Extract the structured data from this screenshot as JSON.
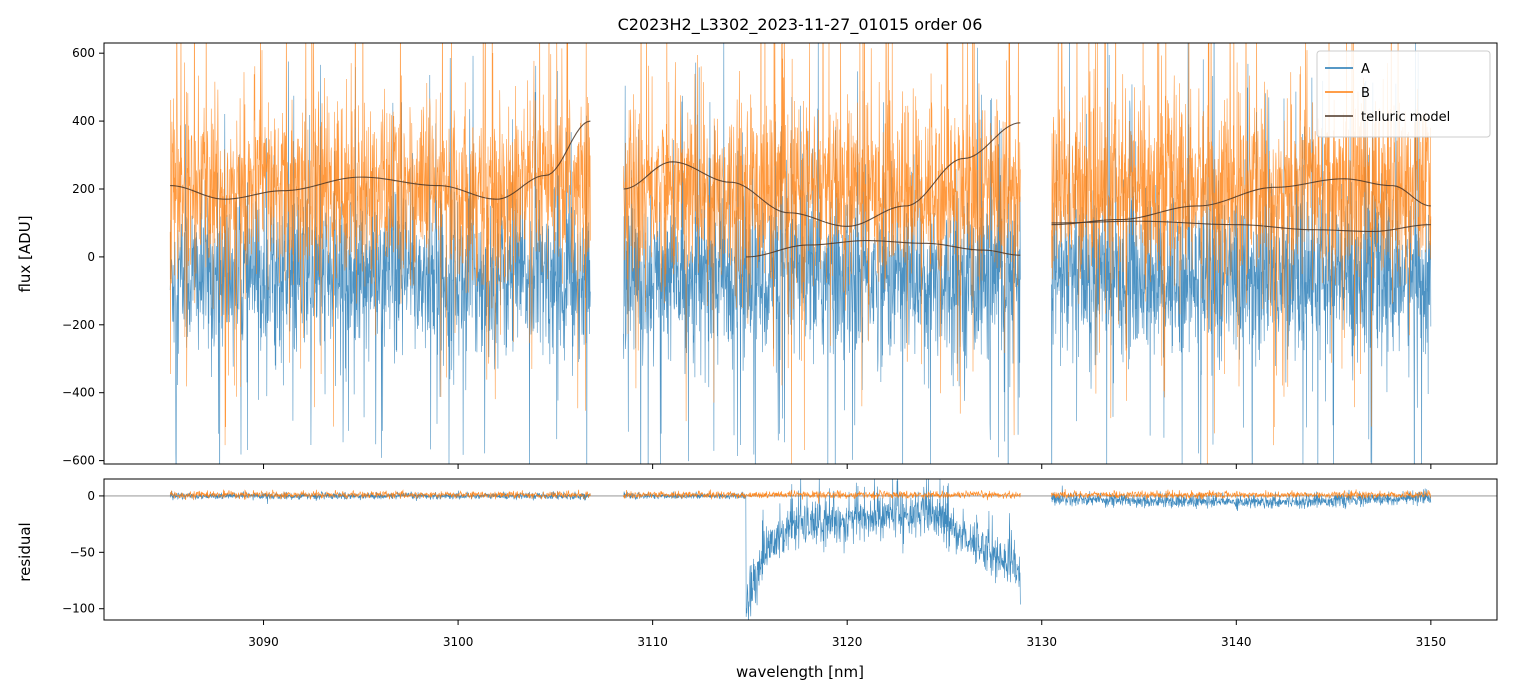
{
  "chart_data": {
    "type": "line",
    "title": "C2023H2_L3302_2023-11-27_01015  order 06",
    "xlabel": "wavelength [nm]",
    "xlim": [
      3081.8,
      3153.4
    ],
    "x_ticks": [
      3090,
      3100,
      3110,
      3120,
      3130,
      3140,
      3150
    ],
    "segments": [
      {
        "start": 3085.2,
        "end": 3106.8
      },
      {
        "start": 3108.5,
        "end": 3128.9
      },
      {
        "start": 3130.5,
        "end": 3150.0
      }
    ],
    "top_panel": {
      "ylabel": "flux [ADU]",
      "ylim": [
        -610,
        630
      ],
      "y_ticks": [
        -600,
        -400,
        -200,
        0,
        200,
        400,
        600
      ],
      "legend_position": "top-right",
      "series": [
        {
          "name": "A",
          "color": "#1f77b4",
          "approx_center": -60,
          "approx_spread": 220
        },
        {
          "name": "B",
          "color": "#ff7f0e",
          "approx_center": 200,
          "approx_spread": 240
        },
        {
          "name": "telluric model",
          "color": "#4a3526",
          "curves": [
            {
              "x": [
                3085.2,
                3088,
                3091,
                3095,
                3099,
                3102,
                3104.5,
                3106.8
              ],
              "y": [
                210,
                170,
                195,
                235,
                210,
                170,
                240,
                400
              ]
            },
            {
              "x": [
                3108.5,
                3111,
                3114,
                3117,
                3120,
                3123,
                3126,
                3128.9
              ],
              "y": [
                200,
                280,
                220,
                130,
                90,
                150,
                290,
                395
              ]
            },
            {
              "x": [
                3114.8,
                3118,
                3121,
                3124,
                3127,
                3128.9
              ],
              "y": [
                0,
                35,
                48,
                40,
                20,
                5
              ]
            },
            {
              "x": [
                3130.5,
                3134,
                3138,
                3142,
                3145.5,
                3148,
                3150
              ],
              "y": [
                95,
                110,
                150,
                205,
                230,
                210,
                150
              ]
            },
            {
              "x": [
                3130.5,
                3135,
                3140,
                3144,
                3147,
                3150
              ],
              "y": [
                100,
                105,
                95,
                80,
                75,
                95
              ]
            }
          ]
        }
      ]
    },
    "bottom_panel": {
      "ylabel": "residual",
      "ylim": [
        -110,
        15
      ],
      "y_ticks": [
        -100,
        -50,
        0
      ],
      "zero_line": true
    }
  }
}
